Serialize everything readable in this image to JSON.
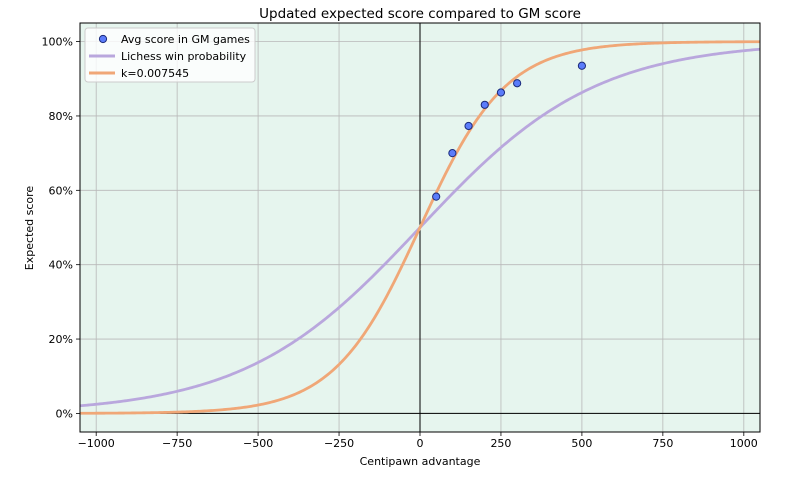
{
  "chart_data": {
    "type": "line",
    "title": "Updated expected score compared to GM score",
    "xlabel": "Centipawn advantage",
    "ylabel": "Expected score",
    "xlim": [
      -1050,
      1050
    ],
    "ylim": [
      -0.05,
      1.05
    ],
    "xticks": [
      -1000,
      -750,
      -500,
      -250,
      0,
      250,
      500,
      750,
      1000
    ],
    "xtick_labels": [
      "−1000",
      "−750",
      "−500",
      "−250",
      "0",
      "250",
      "500",
      "750",
      "1000"
    ],
    "yticks": [
      0,
      0.2,
      0.4,
      0.6,
      0.8,
      1.0
    ],
    "ytick_labels": [
      "0%",
      "20%",
      "40%",
      "60%",
      "80%",
      "100%"
    ],
    "grid": true,
    "legend_position": "top-left",
    "background_color": "#e6f5ee",
    "series": [
      {
        "name": "Avg score in GM games",
        "kind": "scatter",
        "color": "#5b7cfa",
        "x": [
          50,
          100,
          150,
          200,
          250,
          300,
          500
        ],
        "y": [
          0.583,
          0.7,
          0.773,
          0.83,
          0.863,
          0.888,
          0.935
        ]
      },
      {
        "name": "Lichess win probability",
        "kind": "line",
        "color": "#b9a7dd",
        "function": "logistic",
        "k": 0.00368208
      },
      {
        "name": "k=0.007545",
        "kind": "line",
        "color": "#f0a777",
        "function": "logistic",
        "k": 0.007545
      }
    ]
  }
}
